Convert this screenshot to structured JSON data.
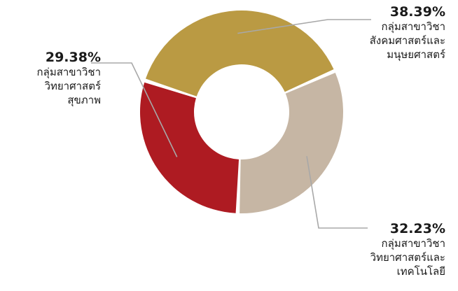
{
  "chart_data": {
    "type": "pie",
    "variant": "donut",
    "slices": [
      {
        "percent_label": "38.39%",
        "value": 38.39,
        "category_lines": [
          "กลุ่มสาขาวิชา",
          "สังคมศาสตร์และ",
          "มนุษยศาสตร์"
        ],
        "color": "#BA9A43"
      },
      {
        "percent_label": "32.23%",
        "value": 32.23,
        "category_lines": [
          "กลุ่มสาขาวิชา",
          "วิทยาศาสตร์และ",
          "เทคโนโลยี"
        ],
        "color": "#C6B6A4"
      },
      {
        "percent_label": "29.38%",
        "value": 29.38,
        "category_lines": [
          "กลุ่มสาขาวิชา",
          "วิทยาศาสตร์",
          "สุขภาพ"
        ],
        "color": "#AE1B22"
      }
    ],
    "leader_line_color": "#A8A8A8"
  }
}
